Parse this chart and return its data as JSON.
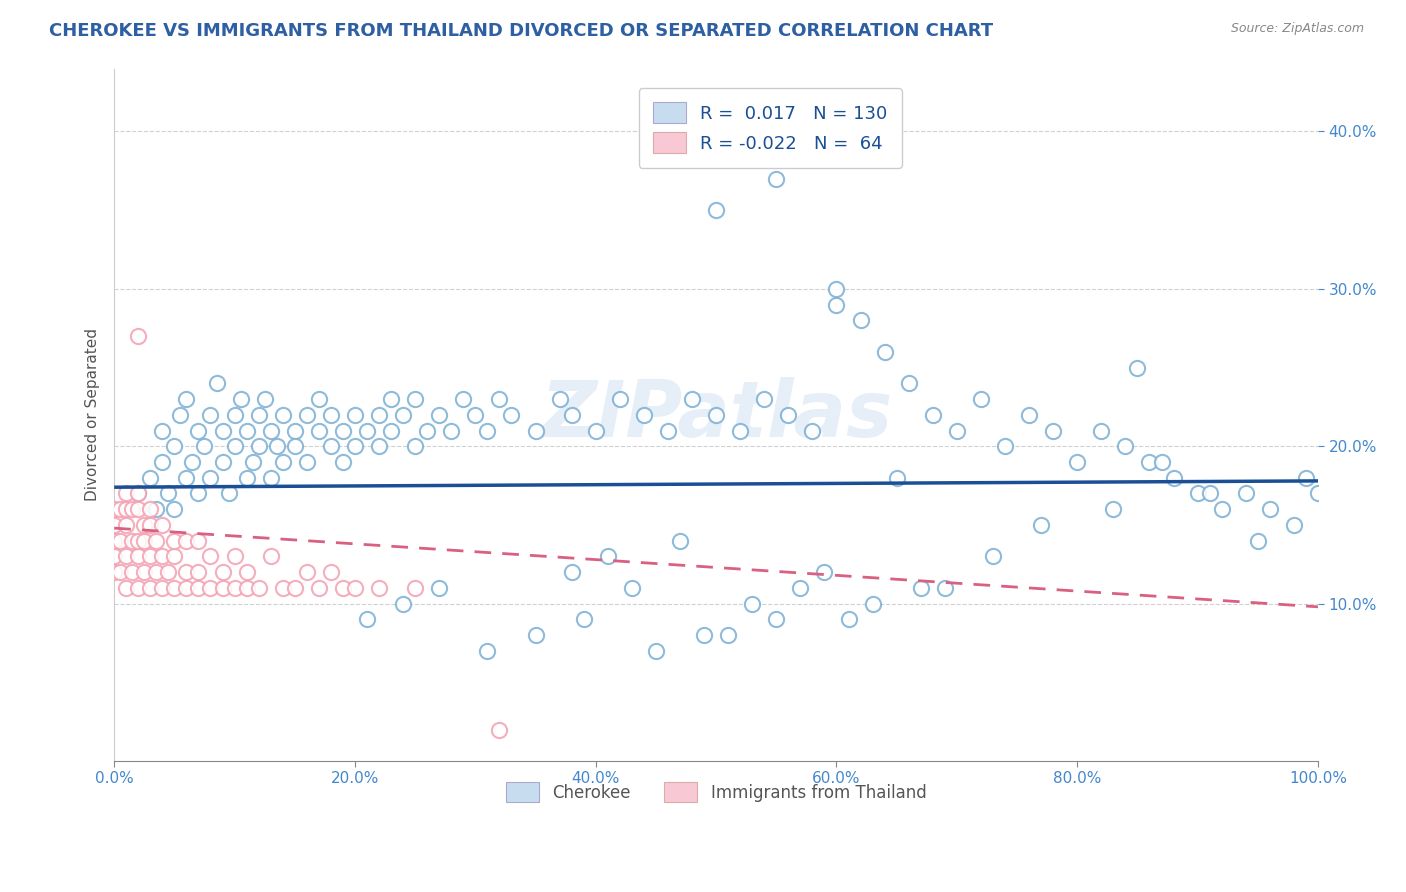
{
  "title": "CHEROKEE VS IMMIGRANTS FROM THAILAND DIVORCED OR SEPARATED CORRELATION CHART",
  "source_text": "Source: ZipAtlas.com",
  "ylabel": "Divorced or Separated",
  "xlim": [
    0.0,
    1.0
  ],
  "ylim": [
    0.0,
    0.44
  ],
  "watermark": "ZIPatlas",
  "legend_blue_label": "Cherokee",
  "legend_pink_label": "Immigrants from Thailand",
  "blue_R": "0.017",
  "blue_N": "130",
  "pink_R": "-0.022",
  "pink_N": "64",
  "blue_dot_color": "#7bafd4",
  "pink_dot_color": "#f4a0b0",
  "blue_line_color": "#1a4f96",
  "pink_line_color": "#d96080",
  "grid_color": "#cccccc",
  "background_color": "#ffffff",
  "title_color": "#2e5fa3",
  "legend_r_color": "#1a4f96",
  "axis_label_color": "#4488cc",
  "tick_color": "#4488cc",
  "blue_scatter_x": [
    0.02,
    0.03,
    0.035,
    0.04,
    0.04,
    0.045,
    0.05,
    0.05,
    0.055,
    0.06,
    0.06,
    0.065,
    0.07,
    0.07,
    0.075,
    0.08,
    0.08,
    0.085,
    0.09,
    0.09,
    0.095,
    0.1,
    0.1,
    0.105,
    0.11,
    0.11,
    0.115,
    0.12,
    0.12,
    0.125,
    0.13,
    0.13,
    0.135,
    0.14,
    0.14,
    0.15,
    0.15,
    0.16,
    0.16,
    0.17,
    0.17,
    0.18,
    0.18,
    0.19,
    0.19,
    0.2,
    0.2,
    0.21,
    0.22,
    0.22,
    0.23,
    0.23,
    0.24,
    0.25,
    0.25,
    0.26,
    0.27,
    0.28,
    0.29,
    0.3,
    0.31,
    0.32,
    0.33,
    0.35,
    0.37,
    0.38,
    0.4,
    0.42,
    0.44,
    0.46,
    0.48,
    0.5,
    0.52,
    0.54,
    0.56,
    0.58,
    0.6,
    0.62,
    0.64,
    0.66,
    0.68,
    0.7,
    0.72,
    0.74,
    0.76,
    0.78,
    0.8,
    0.82,
    0.84,
    0.86,
    0.88,
    0.9,
    0.92,
    0.94,
    0.96,
    0.98,
    1.0,
    0.5,
    0.55,
    0.6,
    0.47,
    0.43,
    0.39,
    0.35,
    0.31,
    0.27,
    0.24,
    0.21,
    0.41,
    0.38,
    0.61,
    0.57,
    0.53,
    0.49,
    0.45,
    0.67,
    0.63,
    0.59,
    0.55,
    0.51,
    0.73,
    0.69,
    0.65,
    0.77,
    0.83,
    0.87,
    0.91,
    0.95,
    0.99,
    0.85
  ],
  "blue_scatter_y": [
    0.17,
    0.18,
    0.16,
    0.19,
    0.21,
    0.17,
    0.2,
    0.16,
    0.22,
    0.18,
    0.23,
    0.19,
    0.21,
    0.17,
    0.2,
    0.22,
    0.18,
    0.24,
    0.19,
    0.21,
    0.17,
    0.22,
    0.2,
    0.23,
    0.18,
    0.21,
    0.19,
    0.22,
    0.2,
    0.23,
    0.18,
    0.21,
    0.2,
    0.22,
    0.19,
    0.21,
    0.2,
    0.22,
    0.19,
    0.21,
    0.23,
    0.2,
    0.22,
    0.21,
    0.19,
    0.22,
    0.2,
    0.21,
    0.22,
    0.2,
    0.23,
    0.21,
    0.22,
    0.2,
    0.23,
    0.21,
    0.22,
    0.21,
    0.23,
    0.22,
    0.21,
    0.23,
    0.22,
    0.21,
    0.23,
    0.22,
    0.21,
    0.23,
    0.22,
    0.21,
    0.23,
    0.22,
    0.21,
    0.23,
    0.22,
    0.21,
    0.3,
    0.28,
    0.26,
    0.24,
    0.22,
    0.21,
    0.23,
    0.2,
    0.22,
    0.21,
    0.19,
    0.21,
    0.2,
    0.19,
    0.18,
    0.17,
    0.16,
    0.17,
    0.16,
    0.15,
    0.17,
    0.35,
    0.37,
    0.29,
    0.14,
    0.11,
    0.09,
    0.08,
    0.07,
    0.11,
    0.1,
    0.09,
    0.13,
    0.12,
    0.09,
    0.11,
    0.1,
    0.08,
    0.07,
    0.11,
    0.1,
    0.12,
    0.09,
    0.08,
    0.13,
    0.11,
    0.18,
    0.15,
    0.16,
    0.19,
    0.17,
    0.14,
    0.18,
    0.25
  ],
  "pink_scatter_x": [
    0.0,
    0.0,
    0.0,
    0.0,
    0.0,
    0.005,
    0.005,
    0.005,
    0.01,
    0.01,
    0.01,
    0.01,
    0.01,
    0.015,
    0.015,
    0.015,
    0.02,
    0.02,
    0.02,
    0.02,
    0.02,
    0.02,
    0.025,
    0.025,
    0.025,
    0.03,
    0.03,
    0.03,
    0.03,
    0.035,
    0.035,
    0.04,
    0.04,
    0.04,
    0.045,
    0.05,
    0.05,
    0.05,
    0.06,
    0.06,
    0.06,
    0.07,
    0.07,
    0.07,
    0.08,
    0.08,
    0.09,
    0.09,
    0.1,
    0.1,
    0.11,
    0.11,
    0.12,
    0.13,
    0.14,
    0.15,
    0.16,
    0.17,
    0.18,
    0.19,
    0.2,
    0.22,
    0.25,
    0.32
  ],
  "pink_scatter_y": [
    0.12,
    0.13,
    0.14,
    0.15,
    0.16,
    0.12,
    0.14,
    0.16,
    0.11,
    0.13,
    0.15,
    0.16,
    0.17,
    0.12,
    0.14,
    0.16,
    0.11,
    0.13,
    0.14,
    0.16,
    0.17,
    0.27,
    0.12,
    0.14,
    0.15,
    0.11,
    0.13,
    0.15,
    0.16,
    0.12,
    0.14,
    0.11,
    0.13,
    0.15,
    0.12,
    0.11,
    0.13,
    0.14,
    0.11,
    0.12,
    0.14,
    0.11,
    0.12,
    0.14,
    0.11,
    0.13,
    0.11,
    0.12,
    0.11,
    0.13,
    0.11,
    0.12,
    0.11,
    0.13,
    0.11,
    0.11,
    0.12,
    0.11,
    0.12,
    0.11,
    0.11,
    0.11,
    0.11,
    0.02
  ],
  "blue_line_y_at_0": 0.174,
  "blue_line_y_at_1": 0.178,
  "pink_line_y_at_0": 0.148,
  "pink_line_y_at_1": 0.098
}
